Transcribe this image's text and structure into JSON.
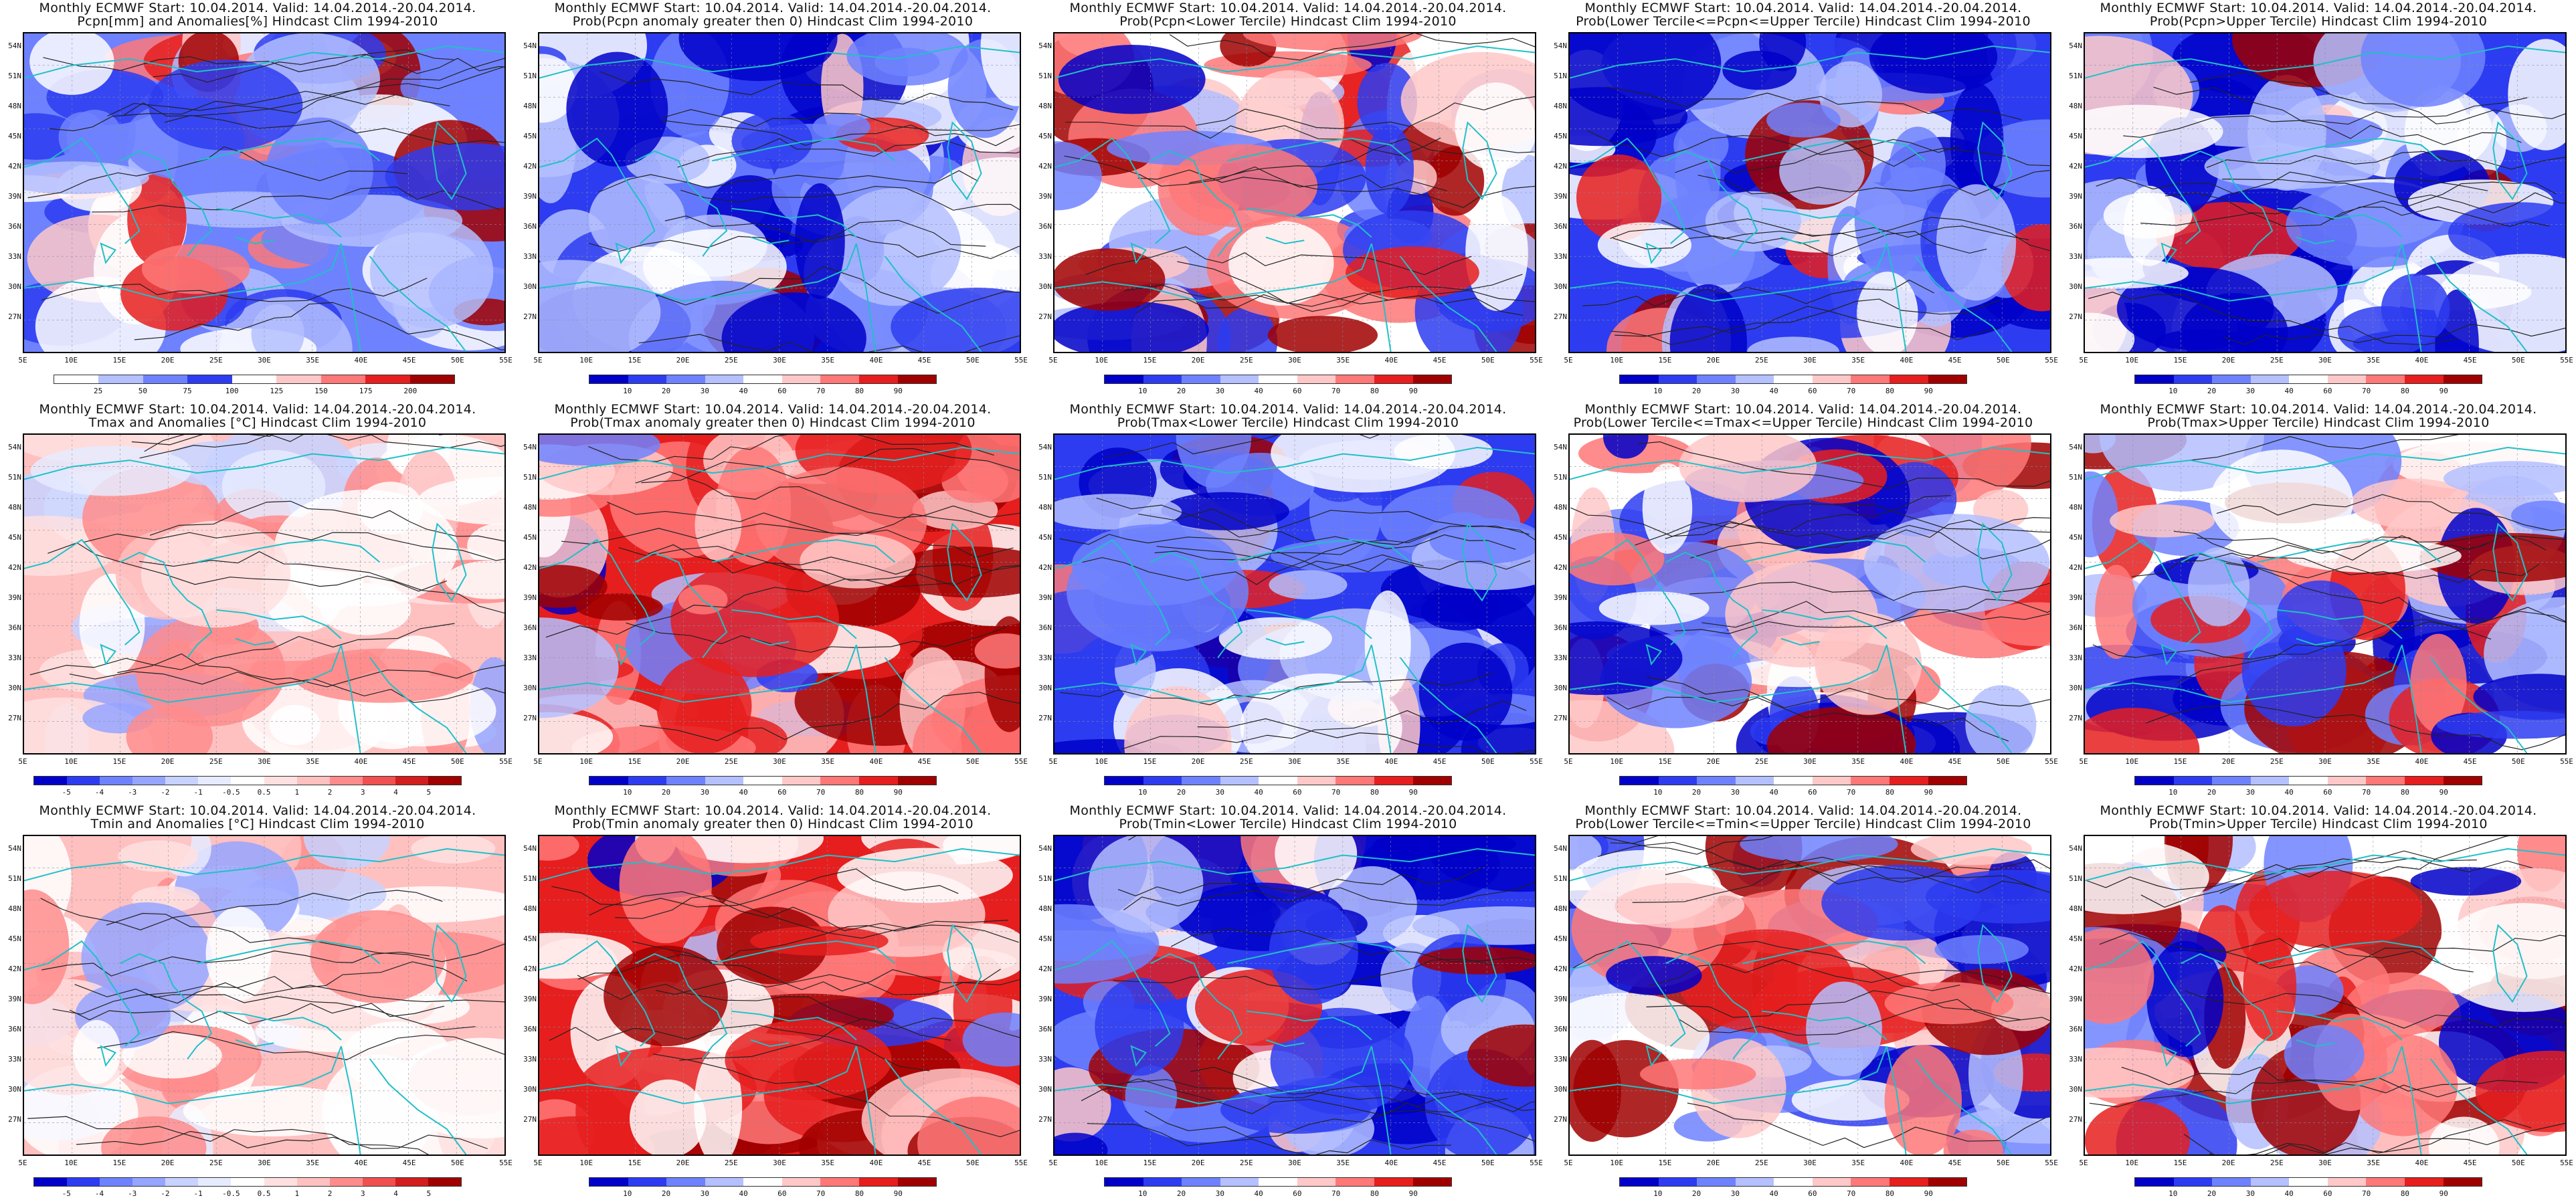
{
  "header_line1": "Monthly ECMWF Start: 10.04.2014. Valid: 14.04.2014.-20.04.2014.",
  "panels": [
    {
      "row": 0,
      "col": 0,
      "title2": "Pcpn[mm] and Anomalies[%] Hindcast Clim 1994-2010",
      "kind": "pcpn",
      "cbar": [
        "25",
        "50",
        "75",
        "100",
        "125",
        "150",
        "175",
        "200"
      ],
      "bias": "wet"
    },
    {
      "row": 0,
      "col": 1,
      "title2": "Prob(Pcpn anomaly greater then 0) Hindcast Clim 1994-2010",
      "kind": "prob",
      "cbar": [
        "10",
        "20",
        "30",
        "40",
        "60",
        "70",
        "80",
        "90"
      ],
      "bias": "blue"
    },
    {
      "row": 0,
      "col": 2,
      "title2": "Prob(Pcpn<Lower Tercile) Hindcast Clim 1994-2010",
      "kind": "prob",
      "cbar": [
        "10",
        "20",
        "30",
        "40",
        "60",
        "70",
        "80",
        "90"
      ],
      "bias": "mixed"
    },
    {
      "row": 0,
      "col": 3,
      "title2": "Prob(Lower Tercile<=Pcpn<=Upper Tercile) Hindcast Clim 1994-2010",
      "kind": "prob",
      "cbar": [
        "10",
        "20",
        "30",
        "40",
        "60",
        "70",
        "80",
        "90"
      ],
      "bias": "blue"
    },
    {
      "row": 0,
      "col": 4,
      "title2": "Prob(Pcpn>Upper Tercile) Hindcast Clim 1994-2010",
      "kind": "prob",
      "cbar": [
        "10",
        "20",
        "30",
        "40",
        "60",
        "70",
        "80",
        "90"
      ],
      "bias": "blue"
    },
    {
      "row": 1,
      "col": 0,
      "title2": "Tmax and Anomalies [°C] Hindcast Clim 1994-2010",
      "kind": "anom",
      "cbar": [
        "-5",
        "-4",
        "-3",
        "-2",
        "-1",
        "-0.5",
        "0.5",
        "1",
        "2",
        "3",
        "4",
        "5"
      ],
      "bias": "lightred"
    },
    {
      "row": 1,
      "col": 1,
      "title2": "Prob(Tmax anomaly greater then 0) Hindcast Clim 1994-2010",
      "kind": "prob",
      "cbar": [
        "10",
        "20",
        "30",
        "40",
        "60",
        "70",
        "80",
        "90"
      ],
      "bias": "red"
    },
    {
      "row": 1,
      "col": 2,
      "title2": "Prob(Tmax<Lower Tercile) Hindcast Clim 1994-2010",
      "kind": "prob",
      "cbar": [
        "10",
        "20",
        "30",
        "40",
        "60",
        "70",
        "80",
        "90"
      ],
      "bias": "blue"
    },
    {
      "row": 1,
      "col": 3,
      "title2": "Prob(Lower Tercile<=Tmax<=Upper Tercile) Hindcast Clim 1994-2010",
      "kind": "prob",
      "cbar": [
        "10",
        "20",
        "30",
        "40",
        "60",
        "70",
        "80",
        "90"
      ],
      "bias": "mixed"
    },
    {
      "row": 1,
      "col": 4,
      "title2": "Prob(Tmax>Upper Tercile) Hindcast Clim 1994-2010",
      "kind": "prob",
      "cbar": [
        "10",
        "20",
        "30",
        "40",
        "60",
        "70",
        "80",
        "90"
      ],
      "bias": "mixed"
    },
    {
      "row": 2,
      "col": 0,
      "title2": "Tmin and Anomalies [°C] Hindcast Clim 1994-2010",
      "kind": "anom",
      "cbar": [
        "-5",
        "-4",
        "-3",
        "-2",
        "-1",
        "-0.5",
        "0.5",
        "1",
        "2",
        "3",
        "4",
        "5"
      ],
      "bias": "lightred"
    },
    {
      "row": 2,
      "col": 1,
      "title2": "Prob(Tmin anomaly greater then 0) Hindcast Clim 1994-2010",
      "kind": "prob",
      "cbar": [
        "10",
        "20",
        "30",
        "40",
        "60",
        "70",
        "80",
        "90"
      ],
      "bias": "red"
    },
    {
      "row": 2,
      "col": 2,
      "title2": "Prob(Tmin<Lower Tercile) Hindcast Clim 1994-2010",
      "kind": "prob",
      "cbar": [
        "10",
        "20",
        "30",
        "40",
        "60",
        "70",
        "80",
        "90"
      ],
      "bias": "blue"
    },
    {
      "row": 2,
      "col": 3,
      "title2": "Prob(Lower Tercile<=Tmin<=Upper Tercile) Hindcast Clim 1994-2010",
      "kind": "prob",
      "cbar": [
        "10",
        "20",
        "30",
        "40",
        "60",
        "70",
        "80",
        "90"
      ],
      "bias": "mixed"
    },
    {
      "row": 2,
      "col": 4,
      "title2": "Prob(Tmin>Upper Tercile) Hindcast Clim 1994-2010",
      "kind": "prob",
      "cbar": [
        "10",
        "20",
        "30",
        "40",
        "60",
        "70",
        "80",
        "90"
      ],
      "bias": "mixed"
    }
  ],
  "lat_labels": [
    "54N",
    "51N",
    "48N",
    "45N",
    "42N",
    "39N",
    "36N",
    "33N",
    "30N",
    "27N"
  ],
  "lon_labels": [
    "5E",
    "10E",
    "15E",
    "20E",
    "25E",
    "30E",
    "35E",
    "40E",
    "45E",
    "50E",
    "55E"
  ],
  "colors": {
    "prob_scale": [
      "#0000c8",
      "#2d3cf0",
      "#6e82ff",
      "#b4c0ff",
      "#ffffff",
      "#ffc8c8",
      "#ff7878",
      "#e61e1e",
      "#a00000"
    ],
    "pcpn_scale": [
      "#ffffff",
      "#b4c0ff",
      "#6e82ff",
      "#2d3cf0",
      "#ffffff",
      "#ffc8c8",
      "#ff7878",
      "#e61e1e",
      "#a00000"
    ],
    "anom_scale": [
      "#0000c8",
      "#2d3cf0",
      "#6e82ff",
      "#96a5ff",
      "#c8d2ff",
      "#e6ebff",
      "#ffffff",
      "#ffe0e0",
      "#ffc0c0",
      "#ff8c8c",
      "#f05050",
      "#d21e1e",
      "#a00000"
    ],
    "coast": "#20c0c8",
    "contour": "#222222"
  }
}
